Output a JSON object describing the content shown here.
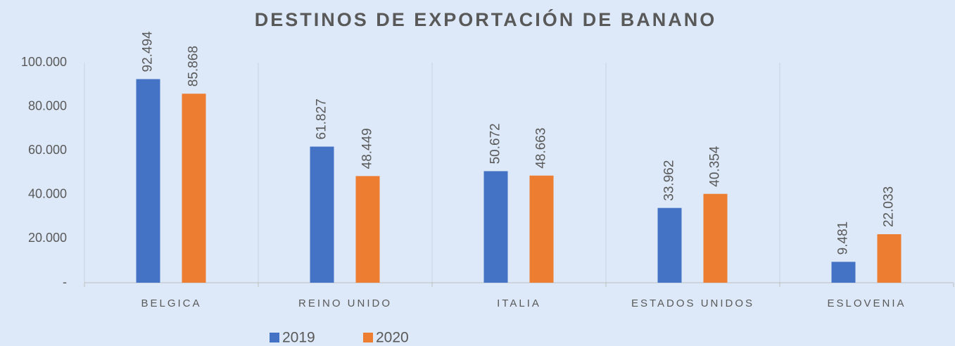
{
  "chart_data": {
    "type": "bar",
    "title": "DESTINOS DE EXPORTACIÓN DE BANANO",
    "categories": [
      "BELGICA",
      "REINO UNIDO",
      "ITALIA",
      "ESTADOS UNIDOS",
      "ESLOVENIA"
    ],
    "series": [
      {
        "name": "2019",
        "color": "#4472c4",
        "values": [
          92494,
          61827,
          50672,
          33962,
          9481
        ],
        "value_labels": [
          "92.494",
          "61.827",
          "50.672",
          "33.962",
          "9.481"
        ]
      },
      {
        "name": "2020",
        "color": "#ed7d31",
        "values": [
          85868,
          48449,
          48663,
          40354,
          22033
        ],
        "value_labels": [
          "85.868",
          "48.449",
          "48.663",
          "40.354",
          "22.033"
        ]
      }
    ],
    "ylim": [
      0,
      100000
    ],
    "yticks": [
      {
        "value": 0,
        "label": "-"
      },
      {
        "value": 20000,
        "label": "20.000"
      },
      {
        "value": 40000,
        "label": "40.000"
      },
      {
        "value": 60000,
        "label": "60.000"
      },
      {
        "value": 80000,
        "label": "80.000"
      },
      {
        "value": 100000,
        "label": "100.000"
      }
    ],
    "legend": "bottom"
  }
}
